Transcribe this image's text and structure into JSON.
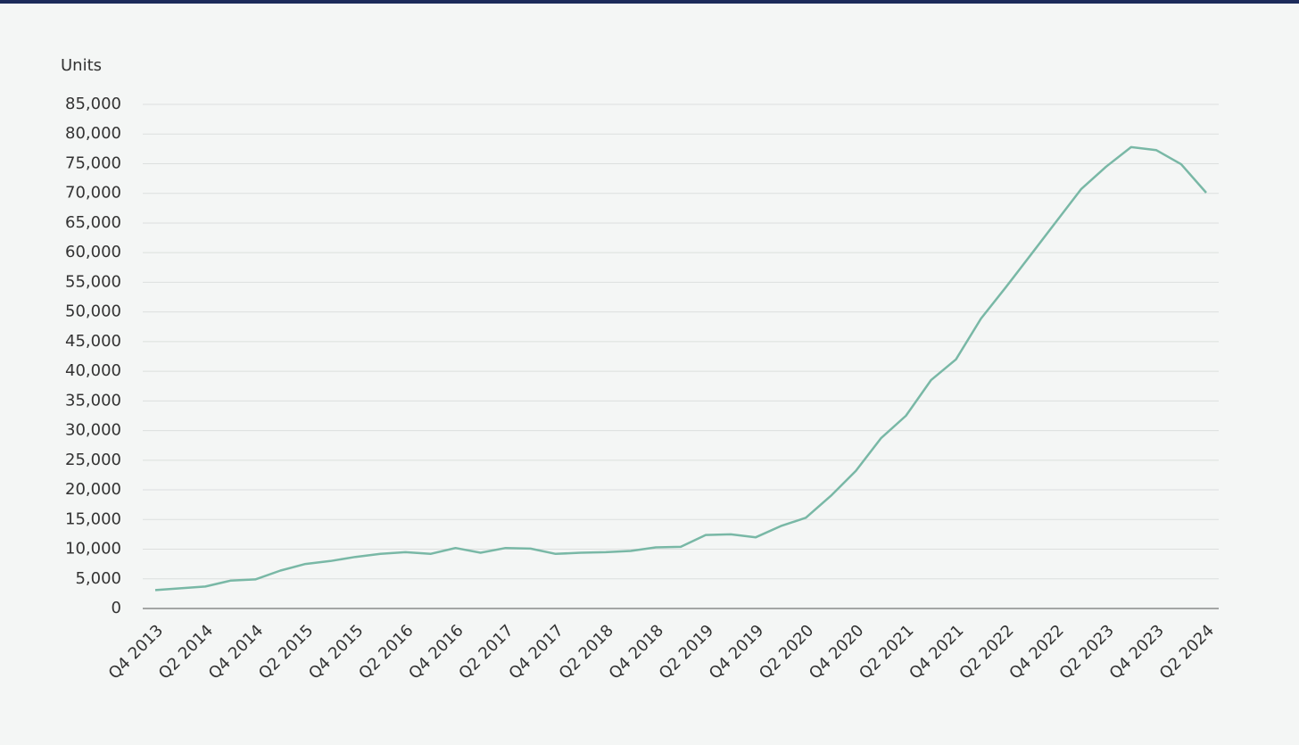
{
  "chart_data": {
    "type": "line",
    "y_label": "Units",
    "categories": [
      "Q4 2013",
      null,
      "Q2 2014",
      null,
      "Q4 2014",
      null,
      "Q2 2015",
      null,
      "Q4 2015",
      null,
      "Q2 2016",
      null,
      "Q4 2016",
      null,
      "Q2 2017",
      null,
      "Q4 2017",
      null,
      "Q2 2018",
      null,
      "Q4 2018",
      null,
      "Q2 2019",
      null,
      "Q4 2019",
      null,
      "Q2 2020",
      null,
      "Q4 2020",
      null,
      "Q2 2021",
      null,
      "Q4 2021",
      null,
      "Q2 2022",
      null,
      "Q4 2022",
      null,
      "Q2 2023",
      null,
      "Q4 2023",
      null,
      "Q2 2024"
    ],
    "values": [
      3100,
      3400,
      3700,
      4700,
      4900,
      6400,
      7500,
      8000,
      8700,
      9200,
      9500,
      9200,
      10200,
      9400,
      10200,
      10100,
      9200,
      9400,
      9500,
      9700,
      10300,
      10400,
      12400,
      12500,
      12000,
      13900,
      15300,
      19000,
      23200,
      28700,
      32500,
      38500,
      42000,
      48900,
      54200,
      59700,
      65200,
      70700,
      74500,
      77800,
      77300,
      74900,
      70100
    ],
    "color": "#79b8a6",
    "ylim": [
      0,
      85000
    ],
    "yticks": [
      0,
      {
        "value": 5000,
        "label": "5,000"
      },
      {
        "value": 10000,
        "label": "10,000"
      },
      {
        "value": 15000,
        "label": "15,000"
      },
      {
        "value": 20000,
        "label": "20,000"
      },
      {
        "value": 25000,
        "label": "25,000"
      },
      {
        "value": 30000,
        "label": "30,000"
      },
      {
        "value": 35000,
        "label": "35,000"
      },
      {
        "value": 40000,
        "label": "40,000"
      },
      {
        "value": 45000,
        "label": "45,000"
      },
      {
        "value": 50000,
        "label": "50,000"
      },
      {
        "value": 55000,
        "label": "55,000"
      },
      {
        "value": 60000,
        "label": "60,000"
      },
      {
        "value": 65000,
        "label": "65,000"
      },
      {
        "value": 70000,
        "label": "70,000"
      },
      {
        "value": 75000,
        "label": "75,000"
      },
      {
        "value": 80000,
        "label": "80,000"
      },
      {
        "value": 85000,
        "label": "85,000"
      }
    ],
    "grid": true
  }
}
